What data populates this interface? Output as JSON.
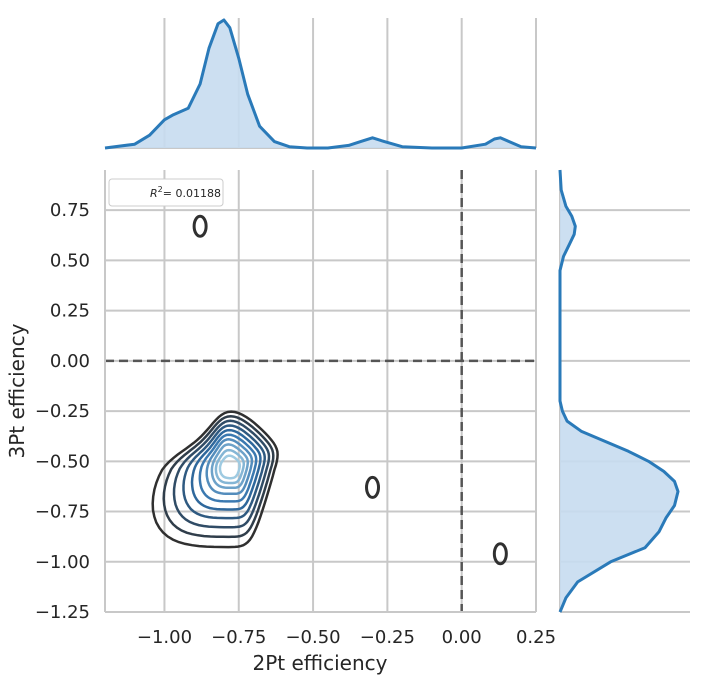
{
  "chart_data": {
    "type": "jointplot-kde",
    "xlabel": "2Pt efficiency",
    "ylabel": "3Pt efficiency",
    "xlim": [
      -1.2,
      0.25
    ],
    "ylim": [
      -1.25,
      0.95
    ],
    "xticks": [
      -1.0,
      -0.75,
      -0.5,
      -0.25,
      0.0,
      0.25
    ],
    "xtick_labels": [
      "−1.00",
      "−0.75",
      "−0.50",
      "−0.25",
      "0.00",
      "0.25"
    ],
    "yticks": [
      0.75,
      0.5,
      0.25,
      0.0,
      -0.25,
      -0.5,
      -0.75,
      -1.0,
      -1.25
    ],
    "ytick_labels": [
      "0.75",
      "0.50",
      "0.25",
      "0.00",
      "−0.25",
      "−0.50",
      "−0.75",
      "−1.00",
      "−1.25"
    ],
    "grid": true,
    "reference_lines": {
      "x": 0.0,
      "y": 0.0,
      "style": "dashed"
    },
    "legend": {
      "placement": "top-left",
      "label_prefix": "R",
      "label_sup": "2",
      "label_value": "= 0.01188"
    },
    "colors": {
      "line": "#2a7ab9",
      "fill": "#c6dbef",
      "grid": "#c8c8c8",
      "contour_outer": "#303030",
      "contour_inner": "#9ecae1",
      "refline": "#555555"
    },
    "marginal_x": {
      "description": "KDE of 2Pt efficiency",
      "x": [
        -1.2,
        -1.1,
        -1.05,
        -1.0,
        -0.97,
        -0.92,
        -0.88,
        -0.85,
        -0.82,
        -0.8,
        -0.78,
        -0.75,
        -0.72,
        -0.68,
        -0.63,
        -0.58,
        -0.52,
        -0.45,
        -0.38,
        -0.34,
        -0.3,
        -0.26,
        -0.2,
        -0.1,
        0.0,
        0.08,
        0.11,
        0.13,
        0.16,
        0.2,
        0.25
      ],
      "density": [
        0.0,
        0.03,
        0.1,
        0.22,
        0.26,
        0.31,
        0.5,
        0.78,
        0.97,
        1.0,
        0.94,
        0.7,
        0.42,
        0.17,
        0.05,
        0.01,
        0.0,
        0.0,
        0.02,
        0.05,
        0.08,
        0.05,
        0.01,
        0.0,
        0.0,
        0.03,
        0.07,
        0.08,
        0.05,
        0.01,
        0.0
      ]
    },
    "marginal_y": {
      "description": "KDE of 3Pt efficiency",
      "y": [
        -1.25,
        -1.18,
        -1.1,
        -1.0,
        -0.93,
        -0.85,
        -0.78,
        -0.72,
        -0.65,
        -0.6,
        -0.55,
        -0.5,
        -0.45,
        -0.4,
        -0.35,
        -0.3,
        -0.25,
        -0.2,
        0.0,
        0.45,
        0.52,
        0.58,
        0.63,
        0.67,
        0.72,
        0.77,
        0.85,
        0.95
      ],
      "density": [
        0.0,
        0.05,
        0.15,
        0.43,
        0.72,
        0.84,
        0.9,
        0.97,
        1.0,
        0.97,
        0.88,
        0.75,
        0.58,
        0.38,
        0.18,
        0.06,
        0.02,
        0.0,
        0.0,
        0.0,
        0.03,
        0.08,
        0.12,
        0.13,
        0.1,
        0.05,
        0.01,
        0.0
      ]
    },
    "kde_contours": {
      "main_cluster_peak": [
        -0.78,
        -0.53
      ],
      "outlier_points": [
        [
          -0.88,
          0.67
        ],
        [
          -0.3,
          -0.63
        ],
        [
          0.13,
          -0.96
        ]
      ],
      "levels": 10
    }
  }
}
